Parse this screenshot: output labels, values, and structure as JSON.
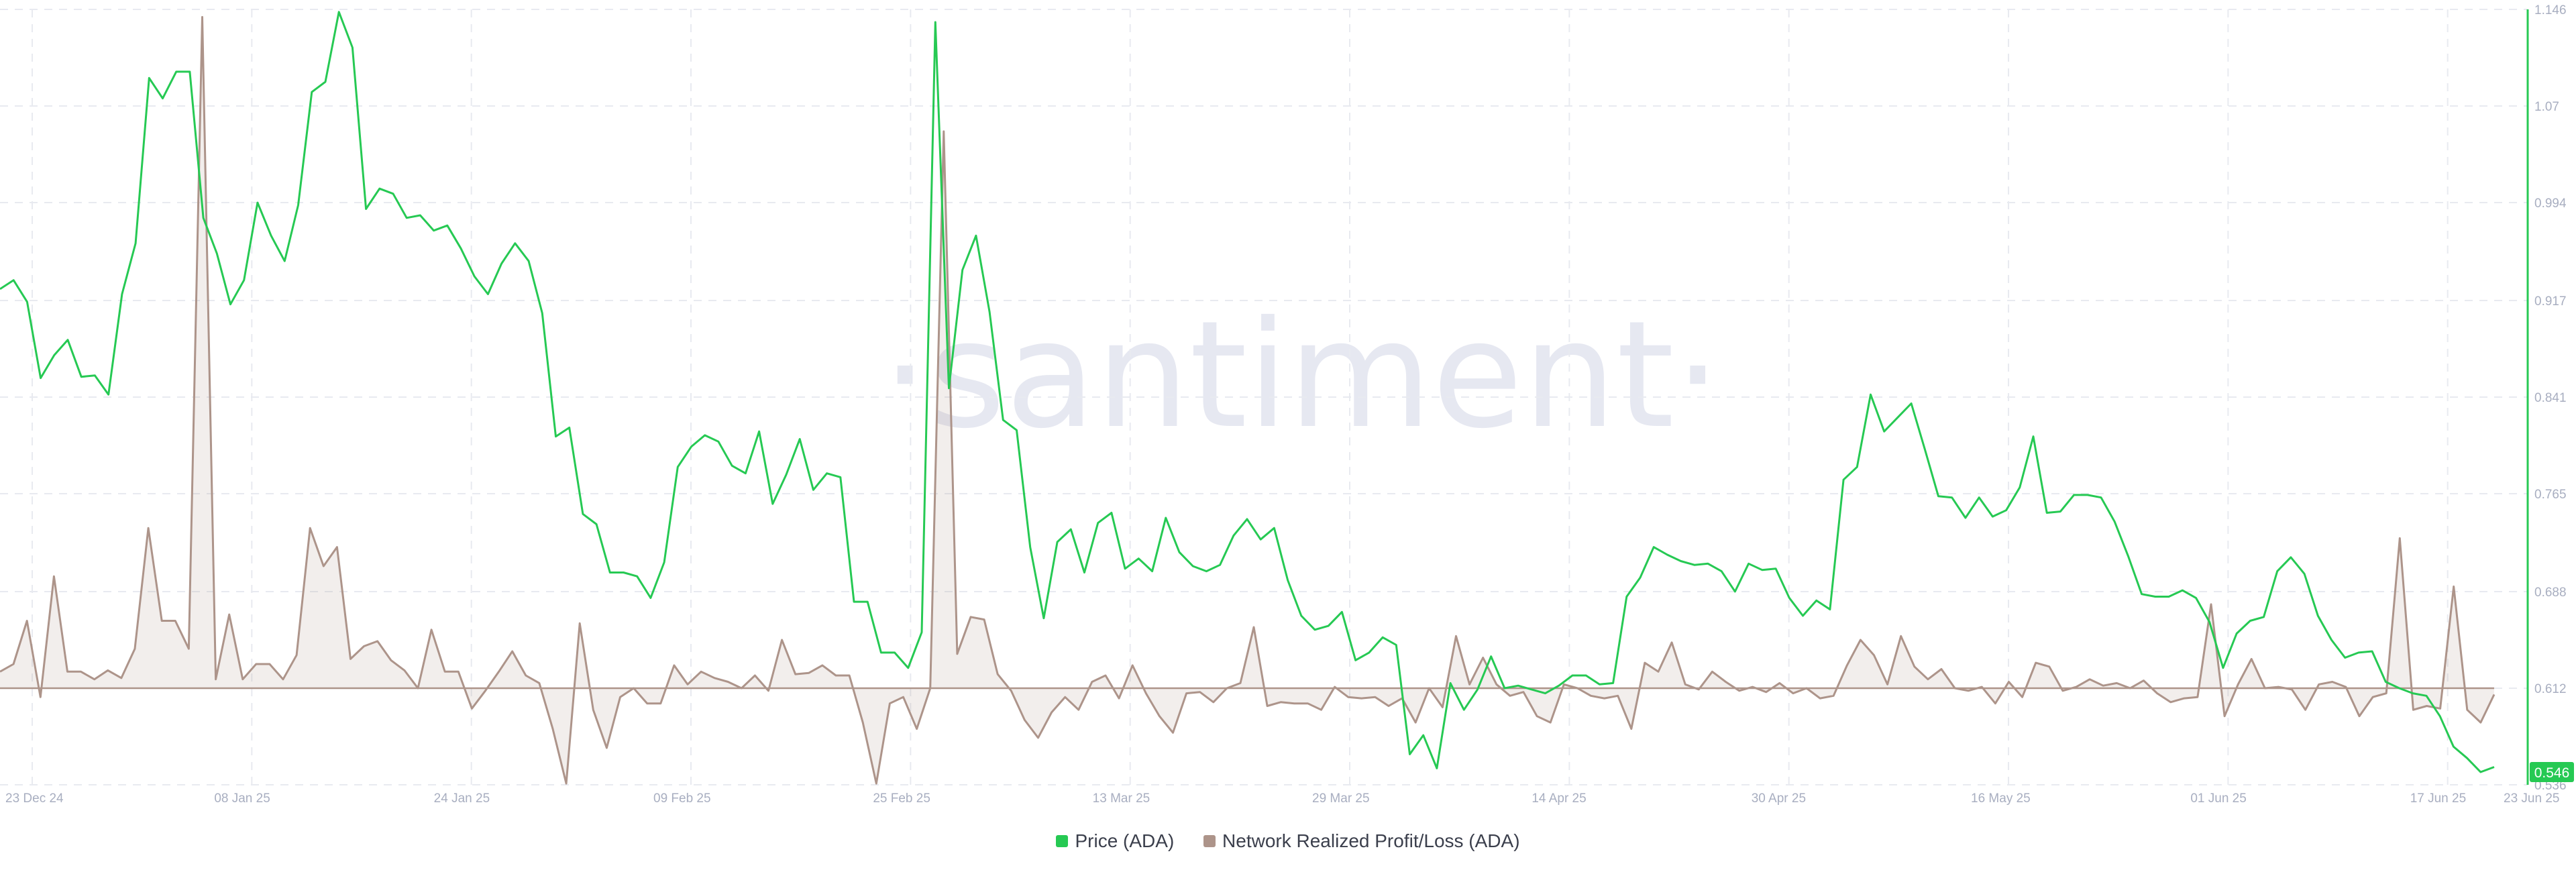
{
  "watermark": "·santiment·",
  "chart_data": {
    "type": "line",
    "x_tick_labels": [
      "23 Dec 24",
      "08 Jan 25",
      "24 Jan 25",
      "09 Feb 25",
      "25 Feb 25",
      "13 Mar 25",
      "29 Mar 25",
      "14 Apr 25",
      "30 Apr 25",
      "16 May 25",
      "01 Jun 25",
      "17 Jun 25",
      "23 Jun 25"
    ],
    "y_tick_labels": [
      "1.146",
      "1.07",
      "0.994",
      "0.917",
      "0.841",
      "0.765",
      "0.688",
      "0.612",
      "0.536"
    ],
    "ylim": [
      0.536,
      1.146
    ],
    "zero_line_price": 0.612,
    "current_price_label": "0.546",
    "grid": true,
    "legend_position": "bottom",
    "series": [
      {
        "name": "Price (ADA)",
        "color": "#26c953",
        "axis": "right",
        "values": [
          0.926,
          0.933,
          0.916,
          0.856,
          0.874,
          0.886,
          0.857,
          0.858,
          0.843,
          0.922,
          0.962,
          1.092,
          1.076,
          1.097,
          1.097,
          0.982,
          0.954,
          0.914,
          0.933,
          0.994,
          0.968,
          0.948,
          0.992,
          1.081,
          1.089,
          1.144,
          1.116,
          0.989,
          1.005,
          1.001,
          0.982,
          0.984,
          0.972,
          0.976,
          0.958,
          0.936,
          0.922,
          0.946,
          0.962,
          0.948,
          0.907,
          0.81,
          0.817,
          0.749,
          0.741,
          0.703,
          0.703,
          0.7,
          0.683,
          0.711,
          0.786,
          0.802,
          0.811,
          0.806,
          0.787,
          0.781,
          0.814,
          0.757,
          0.78,
          0.808,
          0.768,
          0.781,
          0.778,
          0.68,
          0.68,
          0.64,
          0.64,
          0.628,
          0.656,
          1.136,
          0.848,
          0.941,
          0.968,
          0.908,
          0.823,
          0.815,
          0.723,
          0.667,
          0.727,
          0.737,
          0.703,
          0.742,
          0.75,
          0.706,
          0.714,
          0.704,
          0.746,
          0.719,
          0.708,
          0.704,
          0.709,
          0.732,
          0.745,
          0.729,
          0.738,
          0.697,
          0.669,
          0.658,
          0.661,
          0.672,
          0.634,
          0.64,
          0.652,
          0.646,
          0.56,
          0.575,
          0.549,
          0.616,
          0.595,
          0.611,
          0.637,
          0.612,
          0.614,
          0.611,
          0.608,
          0.614,
          0.622,
          0.622,
          0.615,
          0.616,
          0.684,
          0.699,
          0.723,
          0.717,
          0.712,
          0.709,
          0.71,
          0.704,
          0.688,
          0.71,
          0.705,
          0.706,
          0.683,
          0.669,
          0.681,
          0.674,
          0.776,
          0.786,
          0.843,
          0.814,
          0.825,
          0.836,
          0.8,
          0.763,
          0.762,
          0.746,
          0.762,
          0.747,
          0.752,
          0.77,
          0.81,
          0.75,
          0.751,
          0.764,
          0.764,
          0.762,
          0.743,
          0.716,
          0.686,
          0.684,
          0.684,
          0.689,
          0.683,
          0.664,
          0.628,
          0.655,
          0.665,
          0.668,
          0.704,
          0.715,
          0.702,
          0.669,
          0.65,
          0.636,
          0.64,
          0.641,
          0.617,
          0.612,
          0.608,
          0.606,
          0.59,
          0.566,
          0.557,
          0.546,
          0.55
        ]
      },
      {
        "name": "Network Realized Profit/Loss (ADA)",
        "color": "#ad948a",
        "axis": "left",
        "values": [
          0.625,
          0.631,
          0.665,
          0.605,
          0.7,
          0.625,
          0.625,
          0.619,
          0.626,
          0.62,
          0.643,
          0.738,
          0.665,
          0.665,
          0.643,
          1.14,
          0.619,
          0.67,
          0.619,
          0.631,
          0.631,
          0.619,
          0.638,
          0.738,
          0.708,
          0.723,
          0.635,
          0.645,
          0.649,
          0.634,
          0.626,
          0.612,
          0.658,
          0.625,
          0.625,
          0.596,
          0.61,
          0.625,
          0.641,
          0.622,
          0.616,
          0.58,
          0.537,
          0.663,
          0.595,
          0.565,
          0.605,
          0.612,
          0.6,
          0.6,
          0.63,
          0.615,
          0.625,
          0.62,
          0.617,
          0.612,
          0.622,
          0.61,
          0.65,
          0.623,
          0.624,
          0.63,
          0.622,
          0.622,
          0.585,
          0.537,
          0.6,
          0.605,
          0.58,
          0.612,
          1.05,
          0.639,
          0.668,
          0.666,
          0.623,
          0.61,
          0.587,
          0.573,
          0.593,
          0.605,
          0.595,
          0.617,
          0.622,
          0.604,
          0.63,
          0.608,
          0.59,
          0.577,
          0.608,
          0.609,
          0.601,
          0.612,
          0.616,
          0.66,
          0.598,
          0.601,
          0.6,
          0.6,
          0.595,
          0.613,
          0.605,
          0.604,
          0.605,
          0.598,
          0.604,
          0.585,
          0.612,
          0.597,
          0.653,
          0.615,
          0.636,
          0.615,
          0.606,
          0.609,
          0.59,
          0.585,
          0.615,
          0.612,
          0.606,
          0.604,
          0.606,
          0.58,
          0.632,
          0.625,
          0.648,
          0.615,
          0.611,
          0.625,
          0.617,
          0.61,
          0.613,
          0.609,
          0.616,
          0.608,
          0.612,
          0.604,
          0.606,
          0.63,
          0.65,
          0.638,
          0.615,
          0.653,
          0.629,
          0.619,
          0.627,
          0.612,
          0.61,
          0.613,
          0.6,
          0.617,
          0.605,
          0.632,
          0.629,
          0.61,
          0.613,
          0.619,
          0.614,
          0.616,
          0.612,
          0.618,
          0.608,
          0.601,
          0.604,
          0.605,
          0.678,
          0.59,
          0.615,
          0.635,
          0.612,
          0.613,
          0.611,
          0.595,
          0.615,
          0.617,
          0.613,
          0.59,
          0.605,
          0.608,
          0.73,
          0.595,
          0.598,
          0.596,
          0.692,
          0.595,
          0.585,
          0.607
        ]
      }
    ]
  }
}
